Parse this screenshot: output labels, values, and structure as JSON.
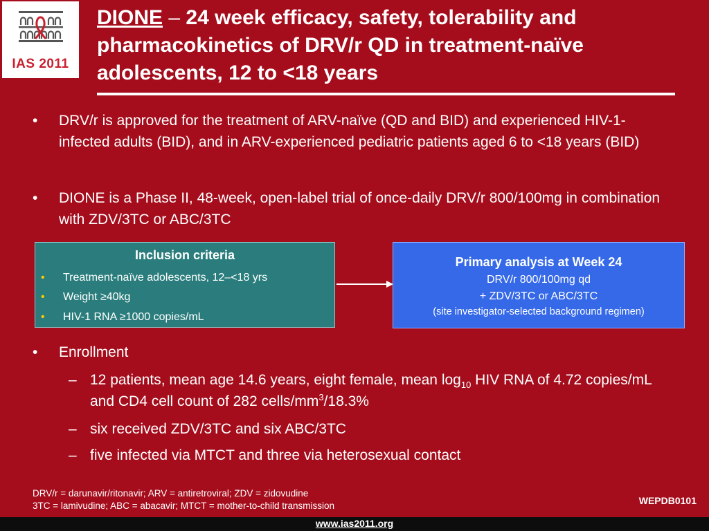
{
  "logo": {
    "text": "IAS 2011",
    "colors": {
      "brand_red": "#c8202f"
    }
  },
  "title": {
    "strong": "DIONE",
    "dash": "–",
    "rest": " 24 week efficacy, safety, tolerability and pharmacokinetics of DRV/r QD in treatment-naïve adolescents, 12 to <18 years"
  },
  "bullet_marker": "•",
  "sub_marker": "–",
  "bullets": {
    "b1": "DRV/r is approved for the treatment of ARV-naïve (QD and BID) and experienced HIV-1-infected adults (BID), and in ARV-experienced pediatric patients aged 6 to <18 years (BID)",
    "b2": "DIONE is a Phase II, 48-week, open-label trial of once-daily DRV/r 800/100mg in combination with ZDV/3TC or ABC/3TC",
    "b3": "Enrollment"
  },
  "inclusion": {
    "title": "Inclusion criteria",
    "items": [
      "Treatment-naïve adolescents, 12–<18 yrs",
      "Weight ≥40kg",
      "HIV-1 RNA ≥1000 copies/mL"
    ],
    "colors": {
      "box": "#2b7d7d",
      "marker": "#ffcc00"
    }
  },
  "primary": {
    "title": "Primary analysis at Week 24",
    "line1": "DRV/r 800/100mg qd",
    "line2": "+ ZDV/3TC or ABC/3TC",
    "line3": "(site investigator-selected background regimen)",
    "colors": {
      "box": "#3569e8"
    }
  },
  "enrollment": {
    "s1_a": "12 patients, mean age 14.6 years, eight female, mean log",
    "s1_sub": "10",
    "s1_b": " HIV RNA of 4.72 copies/mL and CD4 cell count of 282 cells/mm",
    "s1_sup": "3",
    "s1_c": "/18.3%",
    "s2": "six received ZDV/3TC and six ABC/3TC",
    "s3": "five infected via MTCT and three via heterosexual contact"
  },
  "footnote": {
    "line1": "DRV/r = darunavir/ritonavir; ARV = antiretroviral; ZDV = zidovudine",
    "line2": "3TC = lamivudine; ABC = abacavir; MTCT = mother-to-child transmission"
  },
  "poster_code": "WEPDB0101",
  "footer": {
    "url": "www.ias2011.org"
  },
  "colors": {
    "background": "#a50d1c",
    "footer_bar": "#0d0d0d"
  }
}
